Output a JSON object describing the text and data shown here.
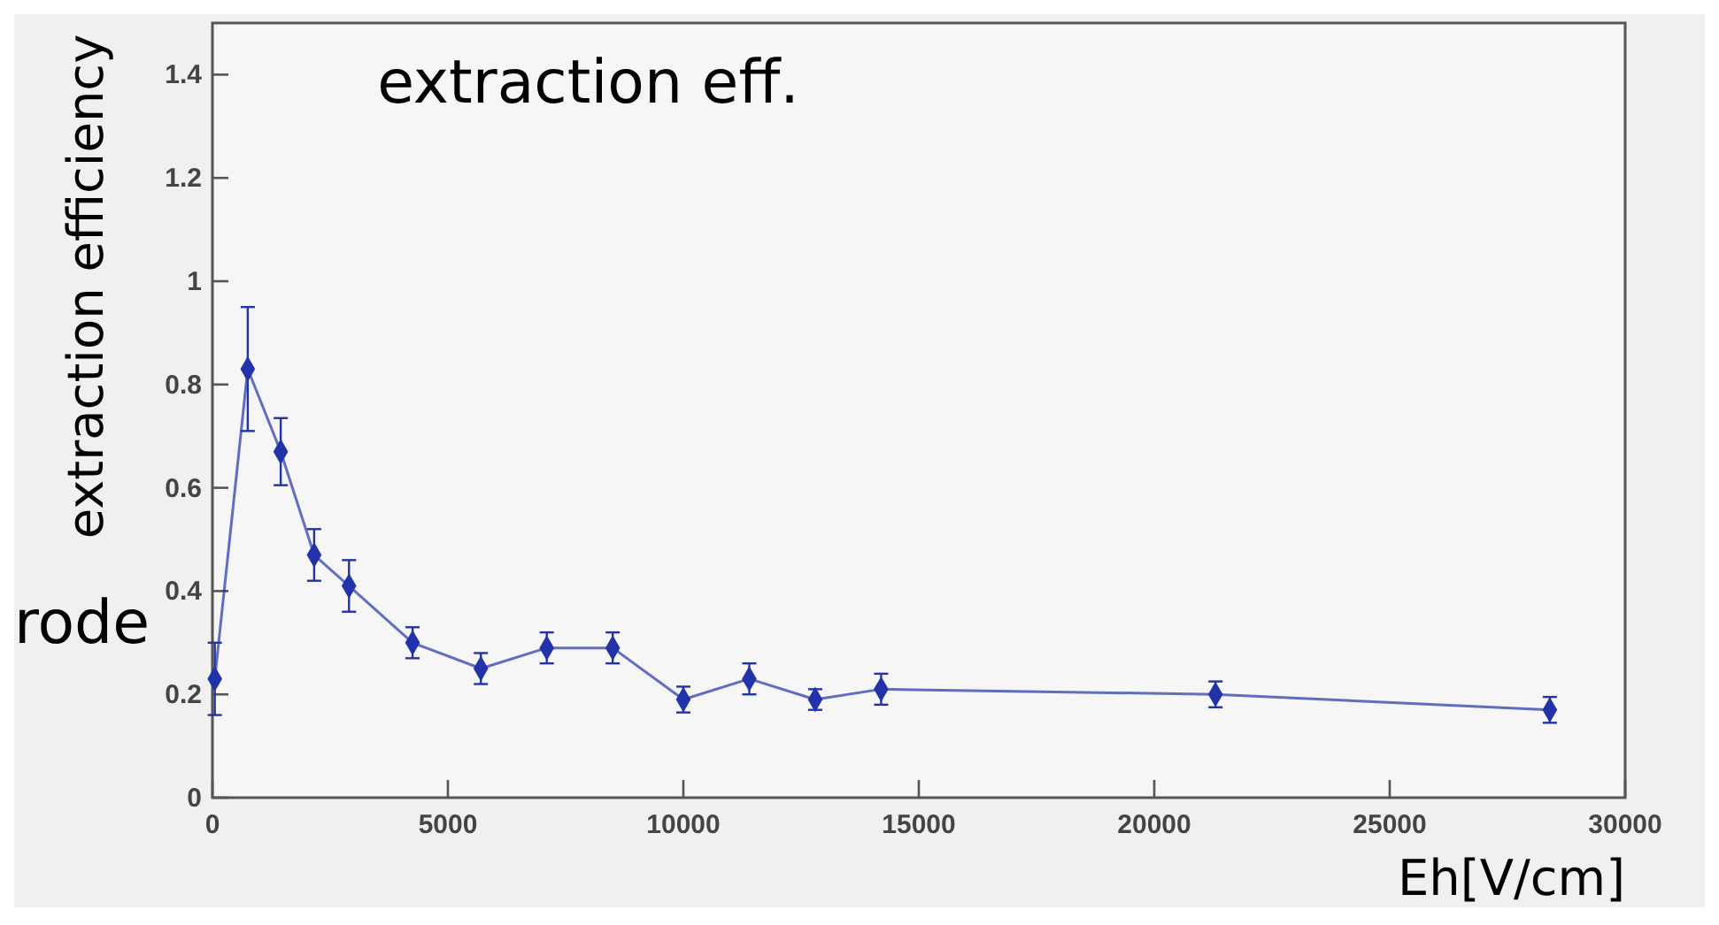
{
  "chart_data": {
    "type": "line",
    "title": "extraction eff.",
    "xlabel": "Eh[V/cm]",
    "ylabel": "extraction efficiency",
    "annotations": [
      "rode"
    ],
    "xlim": [
      0,
      30000
    ],
    "ylim": [
      0,
      1.5
    ],
    "xticks": [
      0,
      5000,
      10000,
      15000,
      20000,
      25000,
      30000
    ],
    "yticks": [
      0,
      0.2,
      0.4,
      0.6,
      0.8,
      1,
      1.2,
      1.4
    ],
    "grid": false,
    "marker": "diamond",
    "line_style": "solid",
    "x": [
      50,
      750,
      1450,
      2160,
      2900,
      4250,
      5700,
      7100,
      8500,
      10000,
      11400,
      12800,
      14200,
      21300,
      28400
    ],
    "series": [
      {
        "color": "#2233aa",
        "values": [
          0.23,
          0.83,
          0.67,
          0.47,
          0.41,
          0.3,
          0.25,
          0.29,
          0.29,
          0.19,
          0.23,
          0.19,
          0.21,
          0.2,
          0.17
        ],
        "errors": [
          0.07,
          0.12,
          0.065,
          0.05,
          0.05,
          0.03,
          0.03,
          0.03,
          0.03,
          0.025,
          0.03,
          0.02,
          0.03,
          0.025,
          0.025
        ]
      }
    ]
  }
}
